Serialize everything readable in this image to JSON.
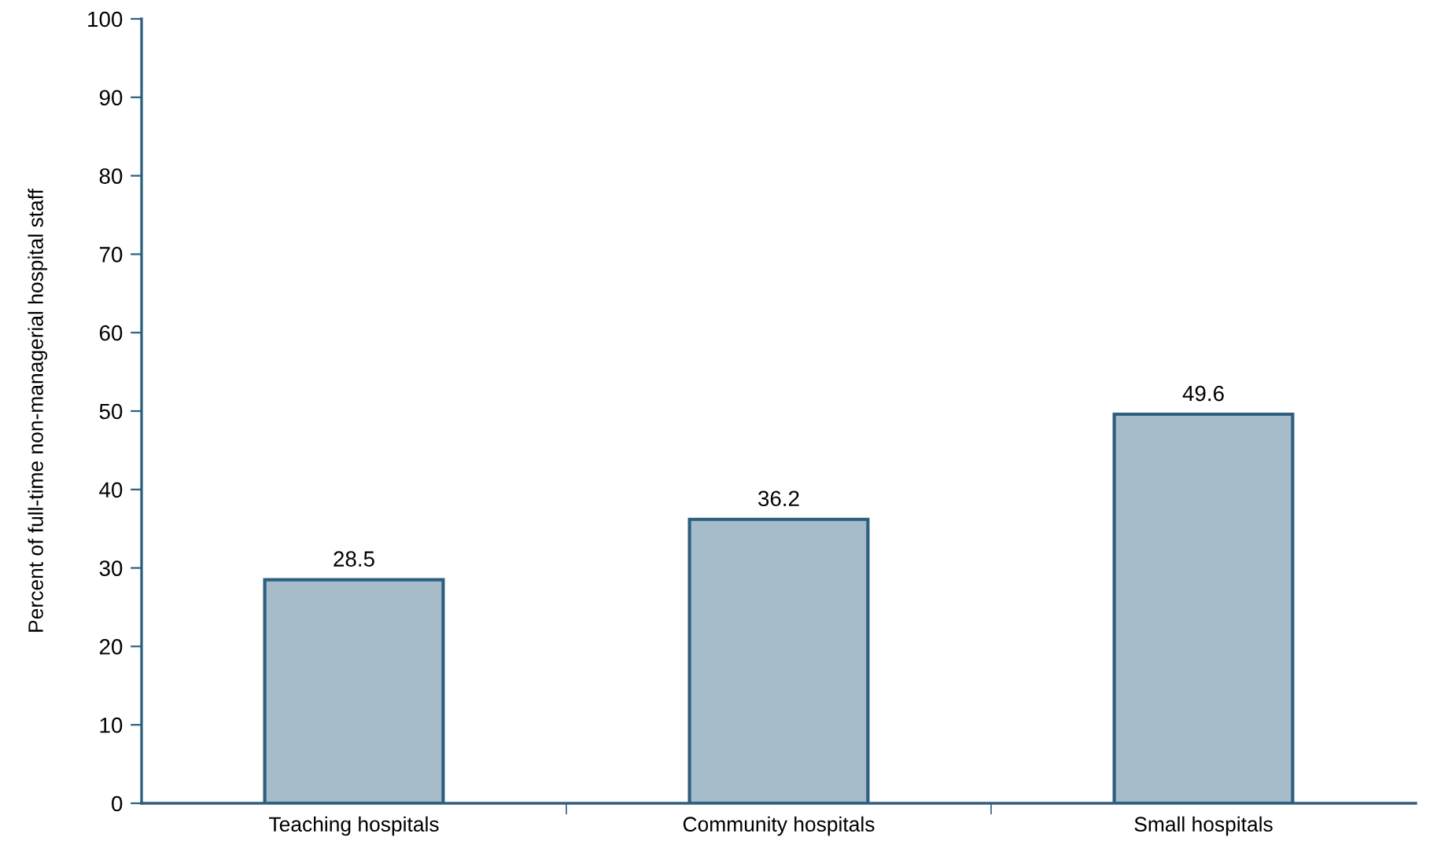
{
  "chart_data": {
    "type": "bar",
    "ylabel": "Percent of full-time non-managerial hospital staff",
    "categories": [
      "Teaching hospitals",
      "Community hospitals",
      "Small hospitals"
    ],
    "values": [
      28.5,
      36.2,
      49.6
    ],
    "color": "#a7bccb",
    "ylim": [
      0,
      100
    ],
    "yticks": [
      0,
      10,
      20,
      30,
      40,
      50,
      60,
      70,
      80,
      90,
      100
    ],
    "grid": false,
    "data_labels": true
  }
}
